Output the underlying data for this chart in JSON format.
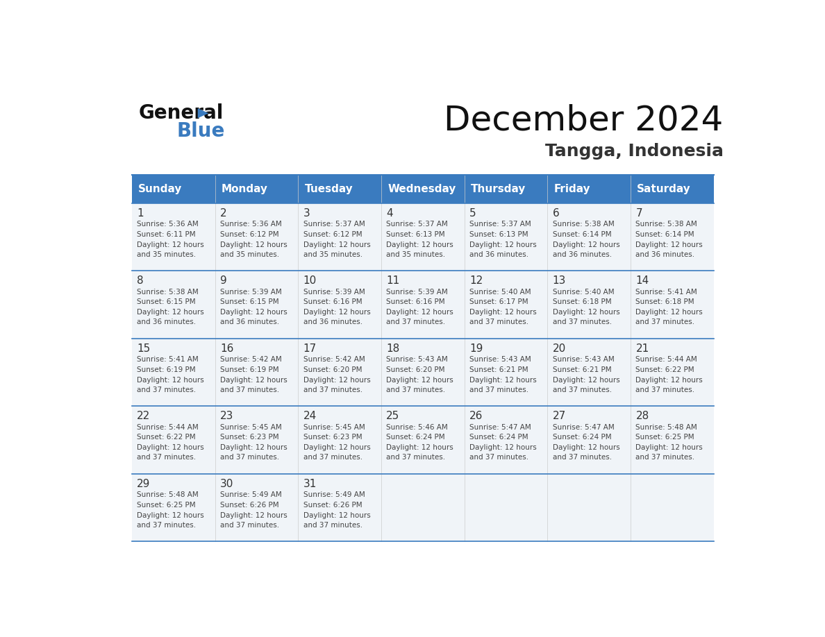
{
  "title": "December 2024",
  "subtitle": "Tangga, Indonesia",
  "header_bg": "#3a7bbf",
  "header_text_color": "#ffffff",
  "day_names": [
    "Sunday",
    "Monday",
    "Tuesday",
    "Wednesday",
    "Thursday",
    "Friday",
    "Saturday"
  ],
  "cell_bg_light": "#f0f4f8",
  "cell_bg_white": "#ffffff",
  "day_num_color": "#333333",
  "info_text_color": "#444444",
  "border_color": "#3a7bbf",
  "days": [
    {
      "day": 1,
      "col": 0,
      "row": 0,
      "sunrise": "5:36 AM",
      "sunset": "6:11 PM",
      "daylight": "12 hours and 35 minutes."
    },
    {
      "day": 2,
      "col": 1,
      "row": 0,
      "sunrise": "5:36 AM",
      "sunset": "6:12 PM",
      "daylight": "12 hours and 35 minutes."
    },
    {
      "day": 3,
      "col": 2,
      "row": 0,
      "sunrise": "5:37 AM",
      "sunset": "6:12 PM",
      "daylight": "12 hours and 35 minutes."
    },
    {
      "day": 4,
      "col": 3,
      "row": 0,
      "sunrise": "5:37 AM",
      "sunset": "6:13 PM",
      "daylight": "12 hours and 35 minutes."
    },
    {
      "day": 5,
      "col": 4,
      "row": 0,
      "sunrise": "5:37 AM",
      "sunset": "6:13 PM",
      "daylight": "12 hours and 36 minutes."
    },
    {
      "day": 6,
      "col": 5,
      "row": 0,
      "sunrise": "5:38 AM",
      "sunset": "6:14 PM",
      "daylight": "12 hours and 36 minutes."
    },
    {
      "day": 7,
      "col": 6,
      "row": 0,
      "sunrise": "5:38 AM",
      "sunset": "6:14 PM",
      "daylight": "12 hours and 36 minutes."
    },
    {
      "day": 8,
      "col": 0,
      "row": 1,
      "sunrise": "5:38 AM",
      "sunset": "6:15 PM",
      "daylight": "12 hours and 36 minutes."
    },
    {
      "day": 9,
      "col": 1,
      "row": 1,
      "sunrise": "5:39 AM",
      "sunset": "6:15 PM",
      "daylight": "12 hours and 36 minutes."
    },
    {
      "day": 10,
      "col": 2,
      "row": 1,
      "sunrise": "5:39 AM",
      "sunset": "6:16 PM",
      "daylight": "12 hours and 36 minutes."
    },
    {
      "day": 11,
      "col": 3,
      "row": 1,
      "sunrise": "5:39 AM",
      "sunset": "6:16 PM",
      "daylight": "12 hours and 37 minutes."
    },
    {
      "day": 12,
      "col": 4,
      "row": 1,
      "sunrise": "5:40 AM",
      "sunset": "6:17 PM",
      "daylight": "12 hours and 37 minutes."
    },
    {
      "day": 13,
      "col": 5,
      "row": 1,
      "sunrise": "5:40 AM",
      "sunset": "6:18 PM",
      "daylight": "12 hours and 37 minutes."
    },
    {
      "day": 14,
      "col": 6,
      "row": 1,
      "sunrise": "5:41 AM",
      "sunset": "6:18 PM",
      "daylight": "12 hours and 37 minutes."
    },
    {
      "day": 15,
      "col": 0,
      "row": 2,
      "sunrise": "5:41 AM",
      "sunset": "6:19 PM",
      "daylight": "12 hours and 37 minutes."
    },
    {
      "day": 16,
      "col": 1,
      "row": 2,
      "sunrise": "5:42 AM",
      "sunset": "6:19 PM",
      "daylight": "12 hours and 37 minutes."
    },
    {
      "day": 17,
      "col": 2,
      "row": 2,
      "sunrise": "5:42 AM",
      "sunset": "6:20 PM",
      "daylight": "12 hours and 37 minutes."
    },
    {
      "day": 18,
      "col": 3,
      "row": 2,
      "sunrise": "5:43 AM",
      "sunset": "6:20 PM",
      "daylight": "12 hours and 37 minutes."
    },
    {
      "day": 19,
      "col": 4,
      "row": 2,
      "sunrise": "5:43 AM",
      "sunset": "6:21 PM",
      "daylight": "12 hours and 37 minutes."
    },
    {
      "day": 20,
      "col": 5,
      "row": 2,
      "sunrise": "5:43 AM",
      "sunset": "6:21 PM",
      "daylight": "12 hours and 37 minutes."
    },
    {
      "day": 21,
      "col": 6,
      "row": 2,
      "sunrise": "5:44 AM",
      "sunset": "6:22 PM",
      "daylight": "12 hours and 37 minutes."
    },
    {
      "day": 22,
      "col": 0,
      "row": 3,
      "sunrise": "5:44 AM",
      "sunset": "6:22 PM",
      "daylight": "12 hours and 37 minutes."
    },
    {
      "day": 23,
      "col": 1,
      "row": 3,
      "sunrise": "5:45 AM",
      "sunset": "6:23 PM",
      "daylight": "12 hours and 37 minutes."
    },
    {
      "day": 24,
      "col": 2,
      "row": 3,
      "sunrise": "5:45 AM",
      "sunset": "6:23 PM",
      "daylight": "12 hours and 37 minutes."
    },
    {
      "day": 25,
      "col": 3,
      "row": 3,
      "sunrise": "5:46 AM",
      "sunset": "6:24 PM",
      "daylight": "12 hours and 37 minutes."
    },
    {
      "day": 26,
      "col": 4,
      "row": 3,
      "sunrise": "5:47 AM",
      "sunset": "6:24 PM",
      "daylight": "12 hours and 37 minutes."
    },
    {
      "day": 27,
      "col": 5,
      "row": 3,
      "sunrise": "5:47 AM",
      "sunset": "6:24 PM",
      "daylight": "12 hours and 37 minutes."
    },
    {
      "day": 28,
      "col": 6,
      "row": 3,
      "sunrise": "5:48 AM",
      "sunset": "6:25 PM",
      "daylight": "12 hours and 37 minutes."
    },
    {
      "day": 29,
      "col": 0,
      "row": 4,
      "sunrise": "5:48 AM",
      "sunset": "6:25 PM",
      "daylight": "12 hours and 37 minutes."
    },
    {
      "day": 30,
      "col": 1,
      "row": 4,
      "sunrise": "5:49 AM",
      "sunset": "6:26 PM",
      "daylight": "12 hours and 37 minutes."
    },
    {
      "day": 31,
      "col": 2,
      "row": 4,
      "sunrise": "5:49 AM",
      "sunset": "6:26 PM",
      "daylight": "12 hours and 37 minutes."
    }
  ]
}
